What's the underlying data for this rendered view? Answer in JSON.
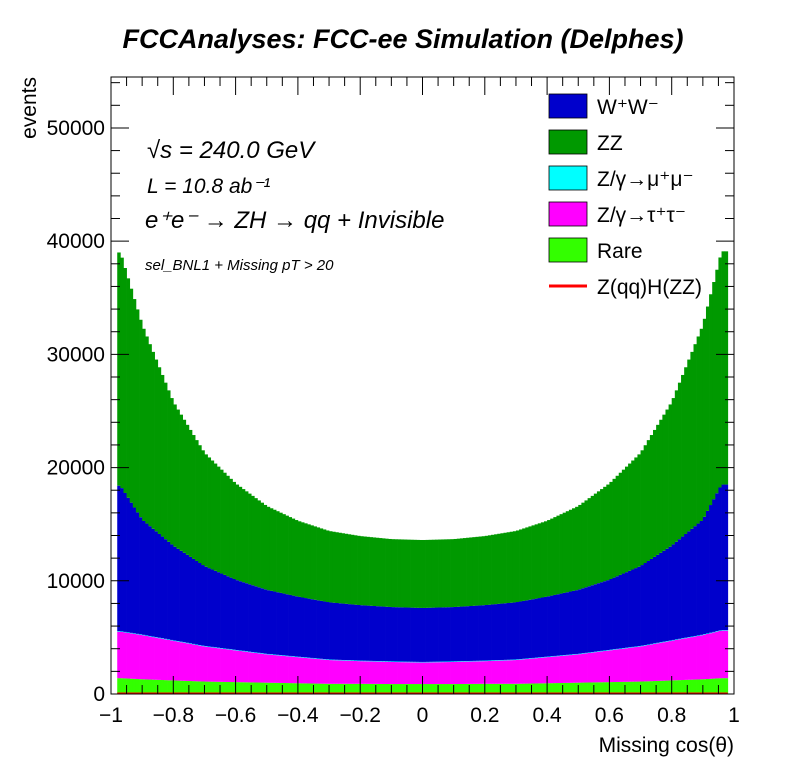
{
  "chart_data": {
    "type": "bar",
    "stacked": true,
    "title": "FCCAnalyses: FCC-ee Simulation (Delphes)",
    "xlabel": "Missing cos(θ)",
    "ylabel": "events",
    "xlim": [
      -1,
      1
    ],
    "ylim": [
      0,
      54500
    ],
    "x_ticks": [
      "−1",
      "−0.8",
      "−0.6",
      "−0.4",
      "−0.2",
      "0",
      "0.2",
      "0.4",
      "0.6",
      "0.8",
      "1"
    ],
    "y_ticks": [
      "0",
      "10000",
      "20000",
      "30000",
      "40000",
      "50000"
    ],
    "x_tick_values": [
      -1,
      -0.8,
      -0.6,
      -0.4,
      -0.2,
      0,
      0.2,
      0.4,
      0.6,
      0.8,
      1
    ],
    "y_tick_values": [
      0,
      10000,
      20000,
      30000,
      40000,
      50000
    ],
    "bin_x": [
      -0.97,
      -0.9,
      -0.8,
      -0.7,
      -0.6,
      -0.5,
      -0.4,
      -0.3,
      -0.2,
      -0.1,
      0.0,
      0.1,
      0.2,
      0.3,
      0.4,
      0.5,
      0.6,
      0.7,
      0.8,
      0.9,
      0.96
    ],
    "series": [
      {
        "name": "Rare",
        "color": "#33ff00",
        "values": [
          1400,
          1300,
          1200,
          1100,
          1050,
          1000,
          950,
          900,
          900,
          880,
          880,
          880,
          900,
          900,
          950,
          1000,
          1050,
          1100,
          1200,
          1300,
          1400
        ]
      },
      {
        "name": "Z/γ→τ⁺τ⁻",
        "color": "#ff00ff",
        "values": [
          4100,
          3900,
          3500,
          3100,
          2800,
          2500,
          2300,
          2100,
          2000,
          1950,
          1900,
          1950,
          2000,
          2100,
          2300,
          2500,
          2800,
          3100,
          3500,
          3900,
          4200
        ]
      },
      {
        "name": "Z/γ→μ⁺μ⁻",
        "color": "#00ffff",
        "values": [
          50,
          50,
          50,
          50,
          50,
          50,
          50,
          50,
          50,
          50,
          50,
          50,
          50,
          50,
          50,
          50,
          50,
          50,
          50,
          50,
          50
        ]
      },
      {
        "name": "W⁺W⁻",
        "color": "#0000cc",
        "values": [
          12850,
          10150,
          8350,
          7050,
          6200,
          5650,
          5300,
          5050,
          4900,
          4800,
          4770,
          4800,
          4900,
          5050,
          5300,
          5650,
          6200,
          7050,
          8350,
          10150,
          12850
        ]
      },
      {
        "name": "ZZ",
        "color": "#009900",
        "values": [
          20600,
          17200,
          12700,
          10000,
          8500,
          7400,
          6700,
          6300,
          6100,
          6000,
          6000,
          6000,
          6100,
          6300,
          6700,
          7400,
          8500,
          10000,
          12700,
          17200,
          20600
        ]
      }
    ],
    "legend": {
      "position": "top-right",
      "entries": [
        {
          "label": "W⁺W⁻",
          "color": "#0000cc",
          "style": "box"
        },
        {
          "label": "ZZ",
          "color": "#009900",
          "style": "box"
        },
        {
          "label": "Z/γ→μ⁺μ⁻",
          "color": "#00ffff",
          "style": "box"
        },
        {
          "label": "Z/γ→τ⁺τ⁻",
          "color": "#ff00ff",
          "style": "box"
        },
        {
          "label": "Rare",
          "color": "#33ff00",
          "style": "box"
        },
        {
          "label": "Z(qq)H(ZZ)",
          "color": "#ff0000",
          "style": "line"
        }
      ]
    },
    "annotations": {
      "energy": "√s = 240.0 GeV",
      "lumi": "L = 10.8 ab⁻¹",
      "process": "e⁺e⁻ → ZH → qq + Invisible",
      "selection": "sel_BNL1 + Missing pT > 20"
    }
  }
}
